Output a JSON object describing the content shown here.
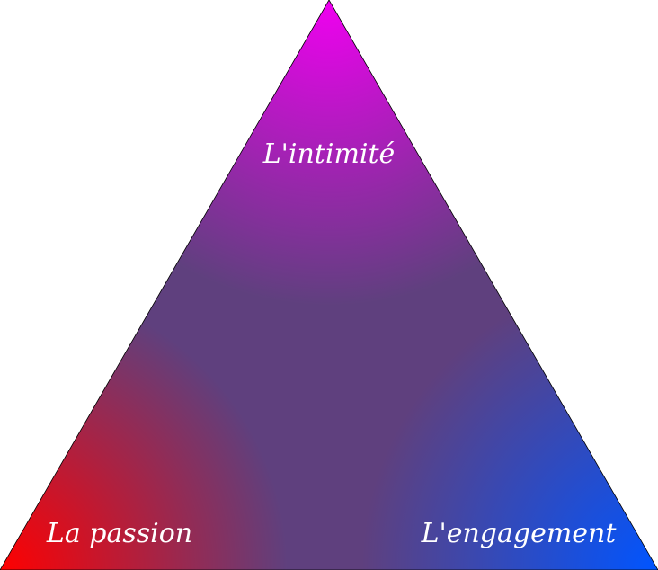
{
  "diagram": {
    "type": "triangle",
    "vertices": {
      "top": {
        "label": "L'intimité",
        "color": "#f000f0"
      },
      "bottom_left": {
        "label": "La passion",
        "color": "#ff0000"
      },
      "bottom_right": {
        "label": "L'engagement",
        "color": "#0055ff"
      }
    },
    "center_color": "#5f407e",
    "edge_color": "#000000",
    "background": "#ffffff"
  }
}
